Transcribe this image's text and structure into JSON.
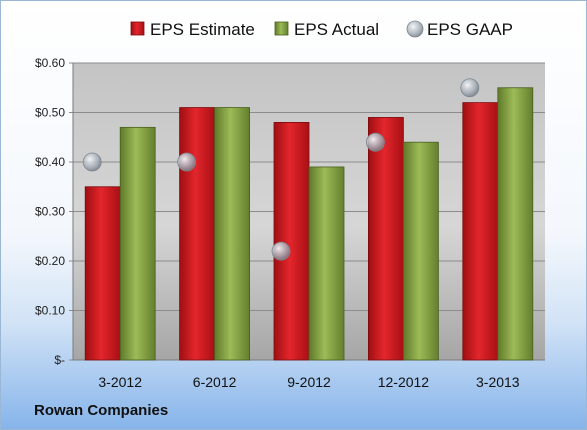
{
  "company": "Rowan Companies",
  "colors": {
    "estimate": "#d81f26",
    "actual": "#8dac4a",
    "gaap": "#b0b7bf"
  },
  "chart_data": {
    "type": "bar",
    "categories": [
      "3-2012",
      "6-2012",
      "9-2012",
      "12-2012",
      "3-2013"
    ],
    "series": [
      {
        "name": "EPS Estimate",
        "kind": "bar",
        "values": [
          0.35,
          0.51,
          0.48,
          0.49,
          0.52
        ]
      },
      {
        "name": "EPS Actual",
        "kind": "bar",
        "values": [
          0.47,
          0.51,
          0.39,
          0.44,
          0.55
        ]
      },
      {
        "name": "EPS GAAP",
        "kind": "marker",
        "values": [
          0.4,
          0.4,
          0.22,
          0.44,
          0.55
        ]
      }
    ],
    "yticks": [
      {
        "value": 0.0,
        "label": "$-"
      },
      {
        "value": 0.1,
        "label": "$0.10"
      },
      {
        "value": 0.2,
        "label": "$0.20"
      },
      {
        "value": 0.3,
        "label": "$0.30"
      },
      {
        "value": 0.4,
        "label": "$0.40"
      },
      {
        "value": 0.5,
        "label": "$0.50"
      },
      {
        "value": 0.6,
        "label": "$0.60"
      }
    ],
    "ylim": [
      0,
      0.6
    ],
    "grid": true,
    "legend": "top"
  }
}
